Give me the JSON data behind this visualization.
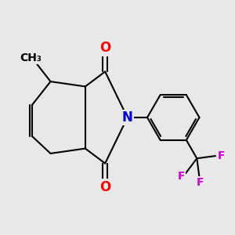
{
  "background_color": "#e8e8e8",
  "bond_color": "#000000",
  "bond_width": 1.5,
  "atom_colors": {
    "O": "#ff0000",
    "N": "#0000cd",
    "F": "#cc00cc",
    "C": "#000000"
  },
  "font_sizes": {
    "O": 12,
    "N": 12,
    "F": 10,
    "CH3": 10
  }
}
